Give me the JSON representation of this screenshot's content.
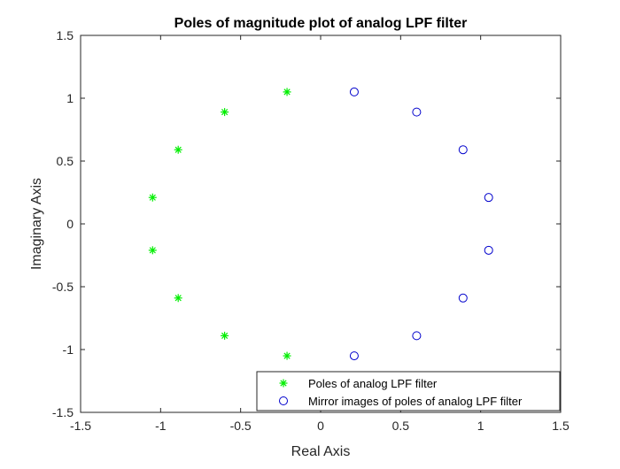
{
  "chart_data": {
    "type": "scatter",
    "title": "Poles of magnitude plot of analog LPF filter",
    "xlabel": "Real Axis",
    "ylabel": "Imaginary Axis",
    "xlim": [
      -1.5,
      1.5
    ],
    "ylim": [
      -1.5,
      1.5
    ],
    "xticks": [
      "-1.5",
      "-1",
      "-0.5",
      "0",
      "0.5",
      "1",
      "1.5"
    ],
    "yticks": [
      "1.5",
      "1",
      "0.5",
      "0",
      "-0.5",
      "-1",
      "-1.5"
    ],
    "grid": false,
    "legend_position": "bottom-right",
    "series": [
      {
        "name": "Poles of analog LPF filter",
        "marker": "asterisk",
        "color": "#00ee00",
        "points": [
          {
            "x": -0.21,
            "y": 1.05
          },
          {
            "x": -0.6,
            "y": 0.89
          },
          {
            "x": -0.89,
            "y": 0.59
          },
          {
            "x": -1.05,
            "y": 0.21
          },
          {
            "x": -1.05,
            "y": -0.21
          },
          {
            "x": -0.89,
            "y": -0.59
          },
          {
            "x": -0.6,
            "y": -0.89
          },
          {
            "x": -0.21,
            "y": -1.05
          }
        ]
      },
      {
        "name": "Mirror images of poles of analog LPF filter",
        "marker": "circle",
        "color": "#0000cc",
        "points": [
          {
            "x": 0.21,
            "y": 1.05
          },
          {
            "x": 0.6,
            "y": 0.89
          },
          {
            "x": 0.89,
            "y": 0.59
          },
          {
            "x": 1.05,
            "y": 0.21
          },
          {
            "x": 1.05,
            "y": -0.21
          },
          {
            "x": 0.89,
            "y": -0.59
          },
          {
            "x": 0.6,
            "y": -0.89
          },
          {
            "x": 0.21,
            "y": -1.05
          }
        ]
      }
    ]
  }
}
